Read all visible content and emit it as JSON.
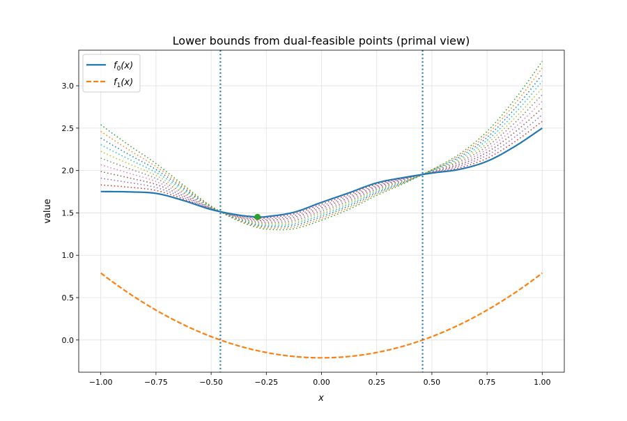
{
  "chart_data": {
    "type": "line",
    "title": "Lower bounds from dual-feasible points (primal view)",
    "xlabel": "x",
    "ylabel": "value",
    "xlim": [
      -1.1,
      1.1
    ],
    "ylim": [
      -0.38,
      3.42
    ],
    "grid": true,
    "legend_placement": "top-left",
    "xticks": [
      -1.0,
      -0.75,
      -0.5,
      -0.25,
      0.0,
      0.25,
      0.5,
      0.75,
      1.0
    ],
    "xtick_labels": [
      "−1.00",
      "−0.75",
      "−0.50",
      "−0.25",
      "0.00",
      "0.25",
      "0.50",
      "0.75",
      "1.00"
    ],
    "yticks": [
      0.0,
      0.5,
      1.0,
      1.5,
      2.0,
      2.5,
      3.0
    ],
    "ytick_labels": [
      "0.0",
      "0.5",
      "1.0",
      "1.5",
      "2.0",
      "2.5",
      "3.0"
    ],
    "f0": {
      "name": "f0(x)",
      "color": "#1f77b4",
      "x": [
        -1.0,
        -0.875,
        -0.75,
        -0.625,
        -0.5,
        -0.375,
        -0.29,
        -0.25,
        -0.125,
        0.0,
        0.125,
        0.25,
        0.375,
        0.5,
        0.625,
        0.75,
        0.875,
        1.0
      ],
      "y": [
        1.752,
        1.748,
        1.73,
        1.646,
        1.54,
        1.474,
        1.452,
        1.455,
        1.507,
        1.624,
        1.737,
        1.854,
        1.918,
        1.97,
        2.014,
        2.109,
        2.283,
        2.5
      ]
    },
    "f1": {
      "name": "f1(x)",
      "color": "#ff7f0e",
      "formula": "x^2 - 0.21"
    },
    "dual_lines": {
      "description_formula": "f0(x) + lambda * f1(x)",
      "lambdas": [
        0.1,
        0.2,
        0.3,
        0.4,
        0.5,
        0.6,
        0.7,
        0.8,
        0.9,
        1.0
      ],
      "colors": [
        "#d62728",
        "#9467bd",
        "#8c564b",
        "#e377c2",
        "#7f7f7f",
        "#bcbd22",
        "#17becf",
        "#1f77b4",
        "#ff7f0e",
        "#2ca02c"
      ]
    },
    "vlines": {
      "x": [
        -0.458,
        0.458
      ],
      "color": "#1f77b4"
    },
    "marker": {
      "x": -0.29,
      "y": 1.452,
      "color": "#2ca02c"
    },
    "legend": [
      {
        "label_main": "f",
        "label_sub": "0",
        "label_tail": "(x)",
        "style": "solid",
        "color": "#1f77b4"
      },
      {
        "label_main": "f",
        "label_sub": "1",
        "label_tail": "(x)",
        "style": "dashed",
        "color": "#ff7f0e"
      }
    ]
  }
}
